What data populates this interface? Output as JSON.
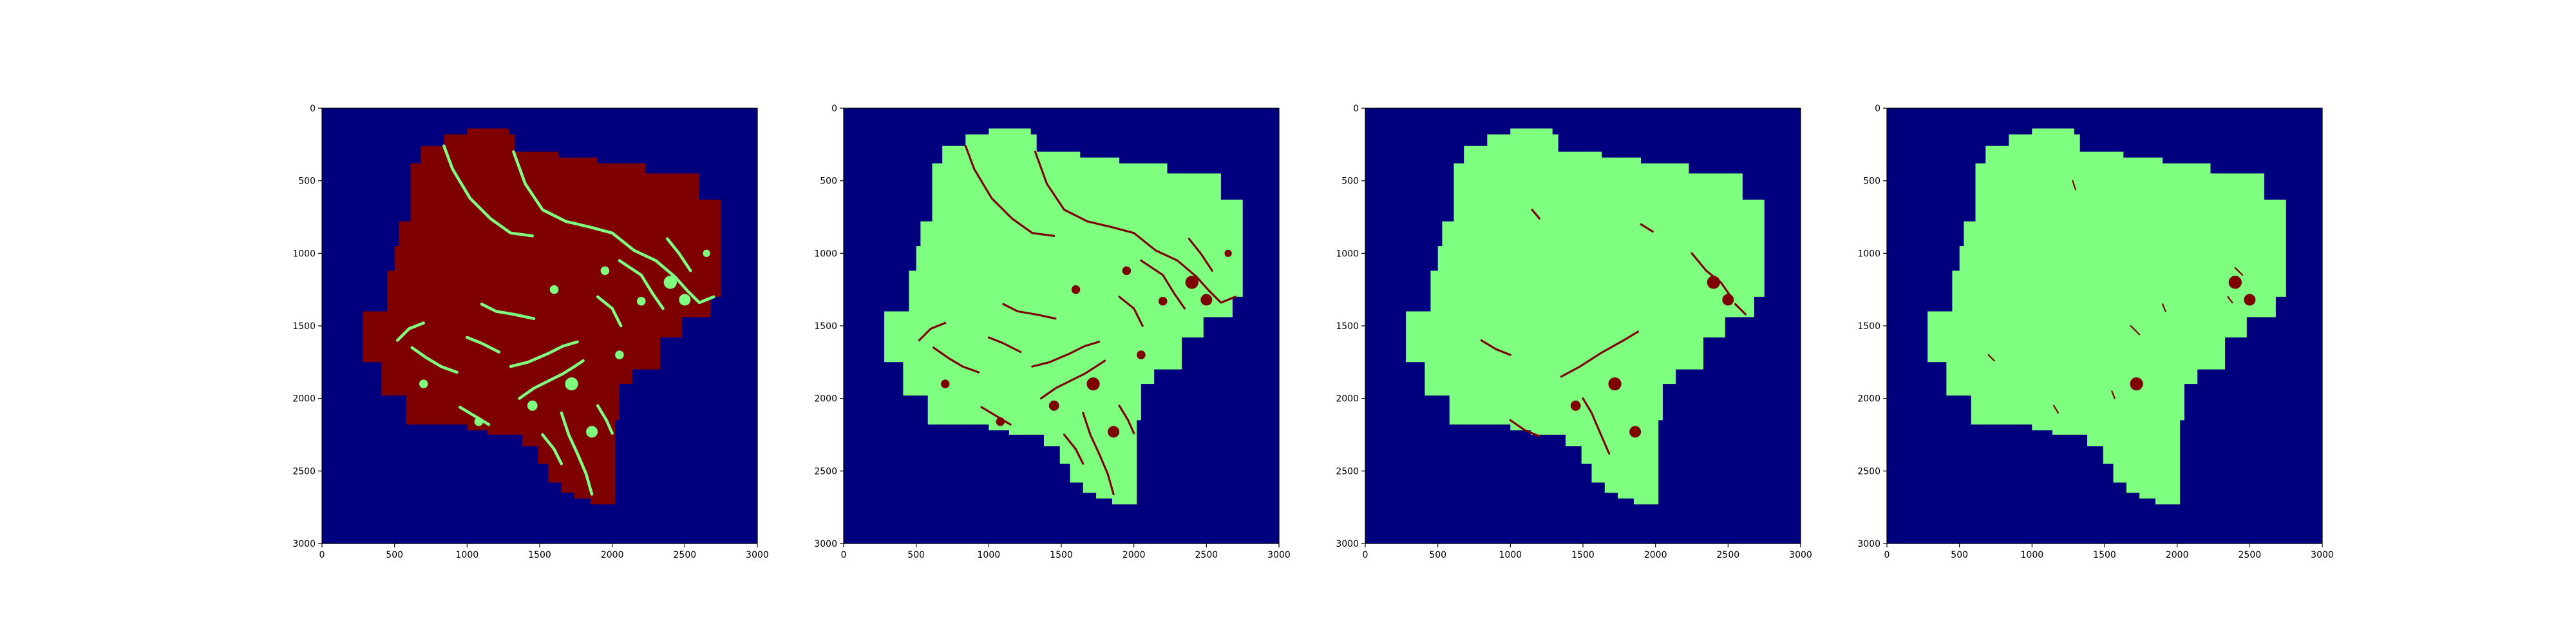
{
  "figure": {
    "background": "#ffffff",
    "panel_count": 4
  },
  "colors": {
    "background_class": "#00007f",
    "land": "#7fff7f",
    "mask": "#7f0000",
    "axis": "#000000"
  },
  "chart_data": [
    {
      "type": "heatmap",
      "title": "",
      "xlabel": "",
      "ylabel": "",
      "xlim": [
        0,
        3000
      ],
      "ylim": [
        3000,
        0
      ],
      "x_ticks": [
        0,
        500,
        1000,
        1500,
        2000,
        2500,
        3000
      ],
      "y_ticks": [
        0,
        500,
        1000,
        1500,
        2000,
        2500,
        3000
      ],
      "x_tick_labels": [
        "0",
        "500",
        "1000",
        "1500",
        "2000",
        "2500",
        "3000"
      ],
      "y_tick_labels": [
        "0",
        "500",
        "1000",
        "1500",
        "2000",
        "2500",
        "3000"
      ],
      "fill_class": "mask",
      "feature_class": "land",
      "description_key": "dark red region with green channels"
    },
    {
      "type": "heatmap",
      "title": "",
      "xlabel": "",
      "ylabel": "",
      "xlim": [
        0,
        3000
      ],
      "ylim": [
        3000,
        0
      ],
      "x_ticks": [
        0,
        500,
        1000,
        1500,
        2000,
        2500,
        3000
      ],
      "y_ticks": [
        0,
        500,
        1000,
        1500,
        2000,
        2500,
        3000
      ],
      "x_tick_labels": [
        "0",
        "500",
        "1000",
        "1500",
        "2000",
        "2500",
        "3000"
      ],
      "y_tick_labels": [
        "0",
        "500",
        "1000",
        "1500",
        "2000",
        "2500",
        "3000"
      ],
      "fill_class": "land",
      "feature_class": "mask",
      "description_key": "green region with many dark red channels"
    },
    {
      "type": "heatmap",
      "title": "",
      "xlabel": "",
      "ylabel": "",
      "xlim": [
        0,
        3000
      ],
      "ylim": [
        3000,
        0
      ],
      "x_ticks": [
        0,
        500,
        1000,
        1500,
        2000,
        2500,
        3000
      ],
      "y_ticks": [
        0,
        500,
        1000,
        1500,
        2000,
        2500,
        3000
      ],
      "x_tick_labels": [
        "0",
        "500",
        "1000",
        "1500",
        "2000",
        "2500",
        "3000"
      ],
      "y_tick_labels": [
        "0",
        "500",
        "1000",
        "1500",
        "2000",
        "2500",
        "3000"
      ],
      "fill_class": "land",
      "feature_class": "mask",
      "description_key": "green region with fewer dark red features"
    },
    {
      "type": "heatmap",
      "title": "",
      "xlabel": "",
      "ylabel": "",
      "xlim": [
        0,
        3000
      ],
      "ylim": [
        3000,
        0
      ],
      "x_ticks": [
        0,
        500,
        1000,
        1500,
        2000,
        2500,
        3000
      ],
      "y_ticks": [
        0,
        500,
        1000,
        1500,
        2000,
        2500,
        3000
      ],
      "x_tick_labels": [
        "0",
        "500",
        "1000",
        "1500",
        "2000",
        "2500",
        "3000"
      ],
      "y_tick_labels": [
        "0",
        "500",
        "1000",
        "1500",
        "2000",
        "2500",
        "3000"
      ],
      "fill_class": "land",
      "feature_class": "mask",
      "description_key": "green region with sparse dark red specks"
    }
  ]
}
